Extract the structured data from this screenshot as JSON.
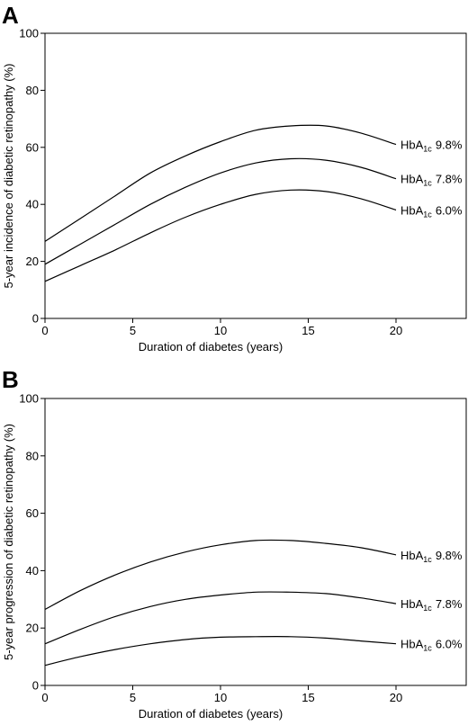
{
  "chart_data": [
    {
      "panel": "A",
      "type": "line",
      "xlabel": "Duration of diabetes (years)",
      "ylabel": "5-year incidence of diabetic retinopathy (%)",
      "xlim": [
        0,
        24
      ],
      "ylim": [
        0,
        100
      ],
      "xticks": [
        0,
        5,
        10,
        15,
        20
      ],
      "yticks": [
        0,
        20,
        40,
        60,
        80,
        100
      ],
      "grid": false,
      "x": [
        0,
        2,
        4,
        6,
        8,
        10,
        12,
        14,
        16,
        18,
        20
      ],
      "series": [
        {
          "name": "HbA1c 9.8%",
          "label_main": "HbA",
          "label_sub": "1c",
          "label_value": "9.8%",
          "values": [
            27,
            35,
            43,
            51,
            57,
            62,
            66,
            67.5,
            67.5,
            65,
            61
          ]
        },
        {
          "name": "HbA1c 7.8%",
          "label_main": "HbA",
          "label_sub": "1c",
          "label_value": "7.8%",
          "values": [
            19,
            26,
            33,
            40,
            46,
            51,
            54.5,
            56,
            55.5,
            53,
            49
          ]
        },
        {
          "name": "HbA1c 6.0%",
          "label_main": "HbA",
          "label_sub": "1c",
          "label_value": "6.0%",
          "values": [
            13,
            18.5,
            24,
            30,
            35.5,
            40,
            43.5,
            45,
            44.5,
            42,
            38
          ]
        }
      ]
    },
    {
      "panel": "B",
      "type": "line",
      "xlabel": "Duration of diabetes (years)",
      "ylabel": "5-year progression of diabetic retinopathy (%)",
      "xlim": [
        0,
        24
      ],
      "ylim": [
        0,
        100
      ],
      "xticks": [
        0,
        5,
        10,
        15,
        20
      ],
      "yticks": [
        0,
        20,
        40,
        60,
        80,
        100
      ],
      "grid": false,
      "x": [
        0,
        2,
        4,
        6,
        8,
        10,
        12,
        14,
        16,
        18,
        20
      ],
      "series": [
        {
          "name": "HbA1c 9.8%",
          "label_main": "HbA",
          "label_sub": "1c",
          "label_value": "9.8%",
          "values": [
            26.5,
            33,
            38.5,
            43,
            46.5,
            49,
            50.5,
            50.5,
            49.5,
            48,
            45.5
          ]
        },
        {
          "name": "HbA1c 7.8%",
          "label_main": "HbA",
          "label_sub": "1c",
          "label_value": "7.8%",
          "values": [
            14.5,
            19.5,
            24,
            27.5,
            30,
            31.5,
            32.5,
            32.5,
            32,
            30.5,
            28.5
          ]
        },
        {
          "name": "HbA1c 6.0%",
          "label_main": "HbA",
          "label_sub": "1c",
          "label_value": "6.0%",
          "values": [
            7,
            10,
            12.5,
            14.5,
            16,
            16.8,
            17,
            17,
            16.5,
            15.5,
            14.5
          ]
        }
      ]
    }
  ]
}
